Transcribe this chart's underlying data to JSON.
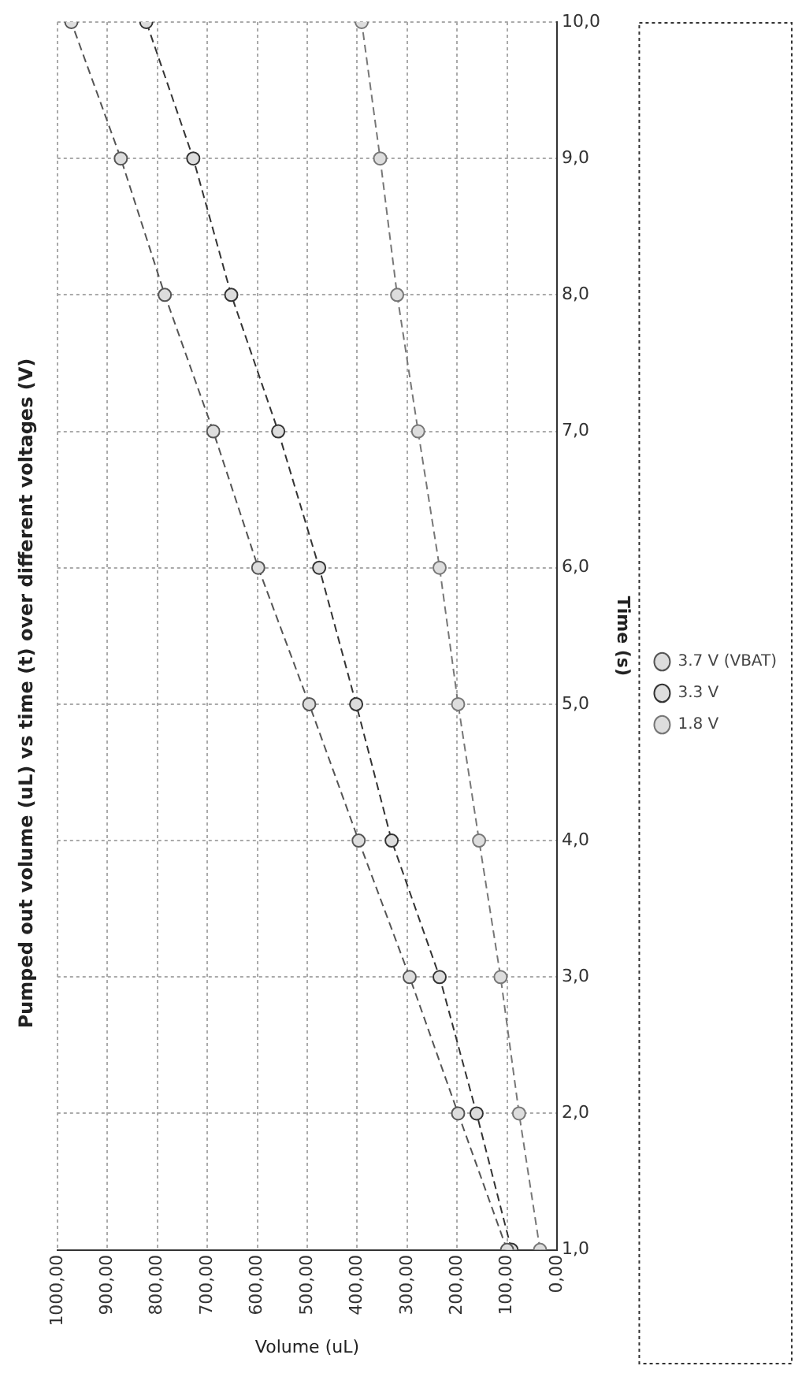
{
  "chart_data": {
    "type": "line",
    "title": "Pumped out volume (uL) vs time (t) over different voltages (V)",
    "xlabel": "Volume (uL)",
    "ylabel": "Time (s)",
    "series": [
      {
        "name": "3.7 V (VBAT)",
        "color": "#555555",
        "x": [
          100,
          198,
          295,
          397,
          496,
          598,
          688,
          785,
          873,
          972
        ],
        "values": [
          1,
          2,
          3,
          4,
          5,
          6,
          7,
          8,
          9,
          10
        ]
      },
      {
        "name": "3.3 V",
        "color": "#333333",
        "x": [
          91,
          161,
          235,
          331,
          402,
          476,
          558,
          652,
          728,
          822
        ],
        "values": [
          1,
          2,
          3,
          4,
          5,
          6,
          7,
          8,
          9,
          10
        ]
      },
      {
        "name": "1.8 V",
        "color": "#777777",
        "x": [
          34,
          76,
          113,
          156,
          198,
          235,
          278,
          320,
          354,
          391
        ],
        "values": [
          1,
          2,
          3,
          4,
          5,
          6,
          7,
          8,
          9,
          10
        ]
      }
    ],
    "xlim": [
      1000,
      0
    ],
    "xticks": [
      {
        "value": 0,
        "label": "0,00"
      },
      {
        "value": 100,
        "label": "100,00"
      },
      {
        "value": 200,
        "label": "200,00"
      },
      {
        "value": 300,
        "label": "300,00"
      },
      {
        "value": 400,
        "label": "400,00"
      },
      {
        "value": 500,
        "label": "500,00"
      },
      {
        "value": 600,
        "label": "600,00"
      },
      {
        "value": 700,
        "label": "700,00"
      },
      {
        "value": 800,
        "label": "800,00"
      },
      {
        "value": 900,
        "label": "900,00"
      },
      {
        "value": 1000,
        "label": "1000,00"
      }
    ],
    "ylim": [
      1,
      10
    ],
    "yticks": [
      {
        "value": 1,
        "label": "1,0"
      },
      {
        "value": 2,
        "label": "2,0"
      },
      {
        "value": 3,
        "label": "3,0"
      },
      {
        "value": 4,
        "label": "4,0"
      },
      {
        "value": 5,
        "label": "5,0"
      },
      {
        "value": 6,
        "label": "6,0"
      },
      {
        "value": 7,
        "label": "7,0"
      },
      {
        "value": 8,
        "label": "8,0"
      },
      {
        "value": 9,
        "label": "9,0"
      },
      {
        "value": 10,
        "label": "10,0"
      }
    ],
    "grid": true,
    "legend": "right",
    "marker": "circle",
    "line_style": "dashed"
  }
}
